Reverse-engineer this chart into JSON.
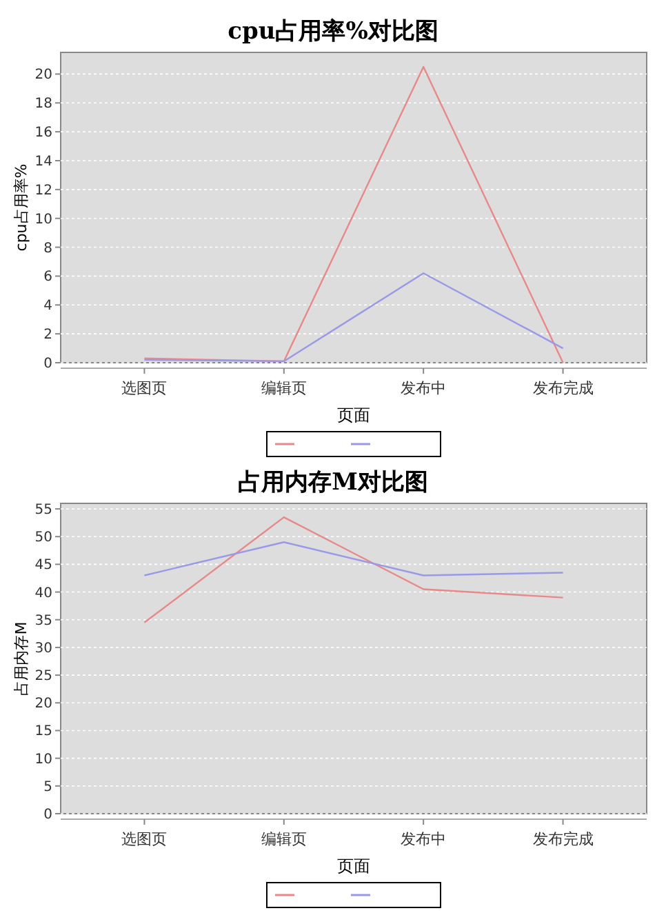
{
  "chart_data": [
    {
      "type": "line",
      "title": "cpu占用率%对比图",
      "xlabel": "页面",
      "ylabel": "cpu占用率%",
      "categories": [
        "选图页",
        "编辑页",
        "发布中",
        "发布完成"
      ],
      "ylim": [
        0,
        21.5
      ],
      "yticks": [
        0,
        2,
        4,
        6,
        8,
        10,
        12,
        14,
        16,
        18,
        20
      ],
      "grid": "y",
      "series": [
        {
          "color": "#e88888",
          "values": [
            0.3,
            0.1,
            20.5,
            0
          ]
        },
        {
          "color": "#9999e8",
          "values": [
            0.2,
            0.1,
            6.2,
            1.0
          ]
        }
      ]
    },
    {
      "type": "line",
      "title": "占用内存M对比图",
      "xlabel": "页面",
      "ylabel": "占用内存M",
      "categories": [
        "选图页",
        "编辑页",
        "发布中",
        "发布完成"
      ],
      "ylim": [
        0,
        56
      ],
      "yticks": [
        0,
        5,
        10,
        15,
        20,
        25,
        30,
        35,
        40,
        45,
        50,
        55
      ],
      "grid": "y",
      "series": [
        {
          "color": "#e88888",
          "values": [
            34.5,
            53.5,
            40.5,
            39
          ]
        },
        {
          "color": "#9999e8",
          "values": [
            43,
            49,
            43,
            43.5
          ]
        }
      ]
    }
  ]
}
